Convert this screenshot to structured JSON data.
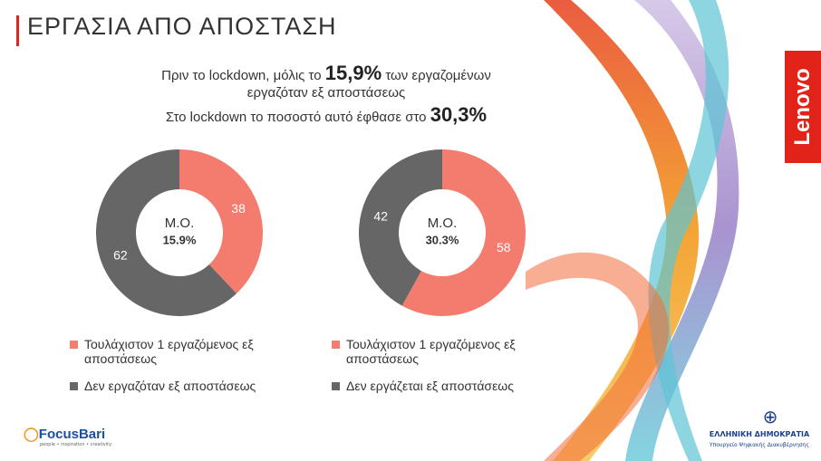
{
  "title": "ΕΡΓΑΣΙΑ ΑΠΟ ΑΠΟΣΤΑΣΗ",
  "intro": {
    "line1_start": "Πριν το lockdown, μόλις το",
    "line1_highlight": "15,9%",
    "line1_end": "των εργαζομένων",
    "line2": "εργαζόταν εξ αποστάσεως",
    "line3_start": "Στο lockdown το ποσοστό αυτό έφθασε στο",
    "line3_highlight": "30,3%"
  },
  "brand": "Lenovo",
  "footer": {
    "left_logo": "FocusBari",
    "left_tagline": "people • inspiration • creativity",
    "right_logo": "ΕΛΛΗΝΙΚΗ ΔΗΜΟΚΡΑΤΙΑ",
    "right_sub": "Υπουργείο Ψηφιακής Διακυβέρνησης"
  },
  "chart_data": [
    {
      "type": "donut",
      "center_title": "Μ.Ο.",
      "center_value": "15.9%",
      "categories": [
        "Τουλάχιστον 1 εργαζόμενος εξ αποστάσεως",
        "Δεν εργαζόταν εξ αποστάσεως"
      ],
      "values": [
        38,
        62
      ],
      "colors": [
        "#f47c6f",
        "#666666"
      ]
    },
    {
      "type": "donut",
      "center_title": "Μ.Ο.",
      "center_value": "30.3%",
      "categories": [
        "Τουλάχιστον 1 εργαζόμενος εξ αποστάσεως",
        "Δεν εργάζεται εξ αποστάσεως"
      ],
      "values": [
        58,
        42
      ],
      "colors": [
        "#f47c6f",
        "#666666"
      ]
    }
  ]
}
